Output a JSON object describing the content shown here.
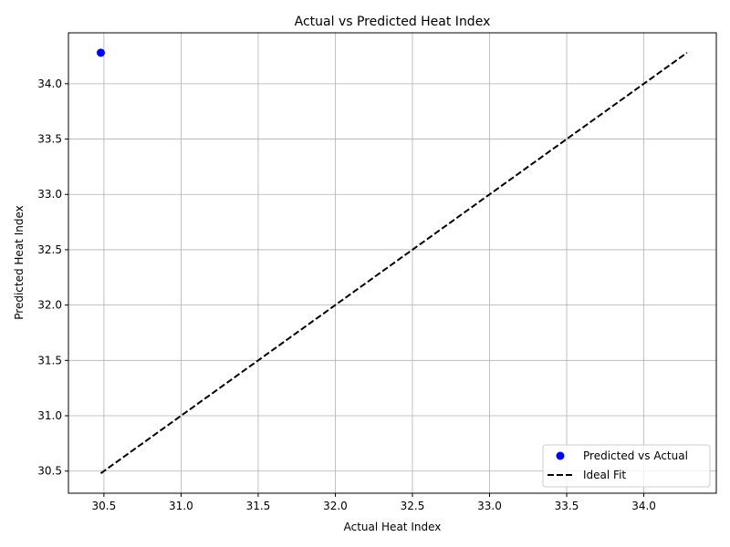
{
  "chart_data": {
    "type": "scatter",
    "title": "Actual vs Predicted Heat Index",
    "xlabel": "Actual Heat Index",
    "ylabel": "Predicted Heat Index",
    "xlim": [
      30.27,
      34.47
    ],
    "ylim": [
      30.3,
      34.46
    ],
    "xticks": [
      "30.5",
      "31.0",
      "31.5",
      "32.0",
      "32.5",
      "33.0",
      "33.5",
      "34.0"
    ],
    "yticks": [
      "30.5",
      "31.0",
      "31.5",
      "32.0",
      "32.5",
      "33.0",
      "33.5",
      "34.0"
    ],
    "grid": true,
    "legend_position": "bottom-right",
    "series": [
      {
        "name": "Predicted vs Actual",
        "kind": "scatter",
        "color": "#0000ff",
        "points": [
          {
            "x": 30.48,
            "y": 34.28
          }
        ]
      },
      {
        "name": "Ideal Fit",
        "kind": "line",
        "style": "dashed",
        "color": "#000000",
        "points": [
          {
            "x": 30.48,
            "y": 30.48
          },
          {
            "x": 34.28,
            "y": 34.28
          }
        ]
      }
    ]
  }
}
